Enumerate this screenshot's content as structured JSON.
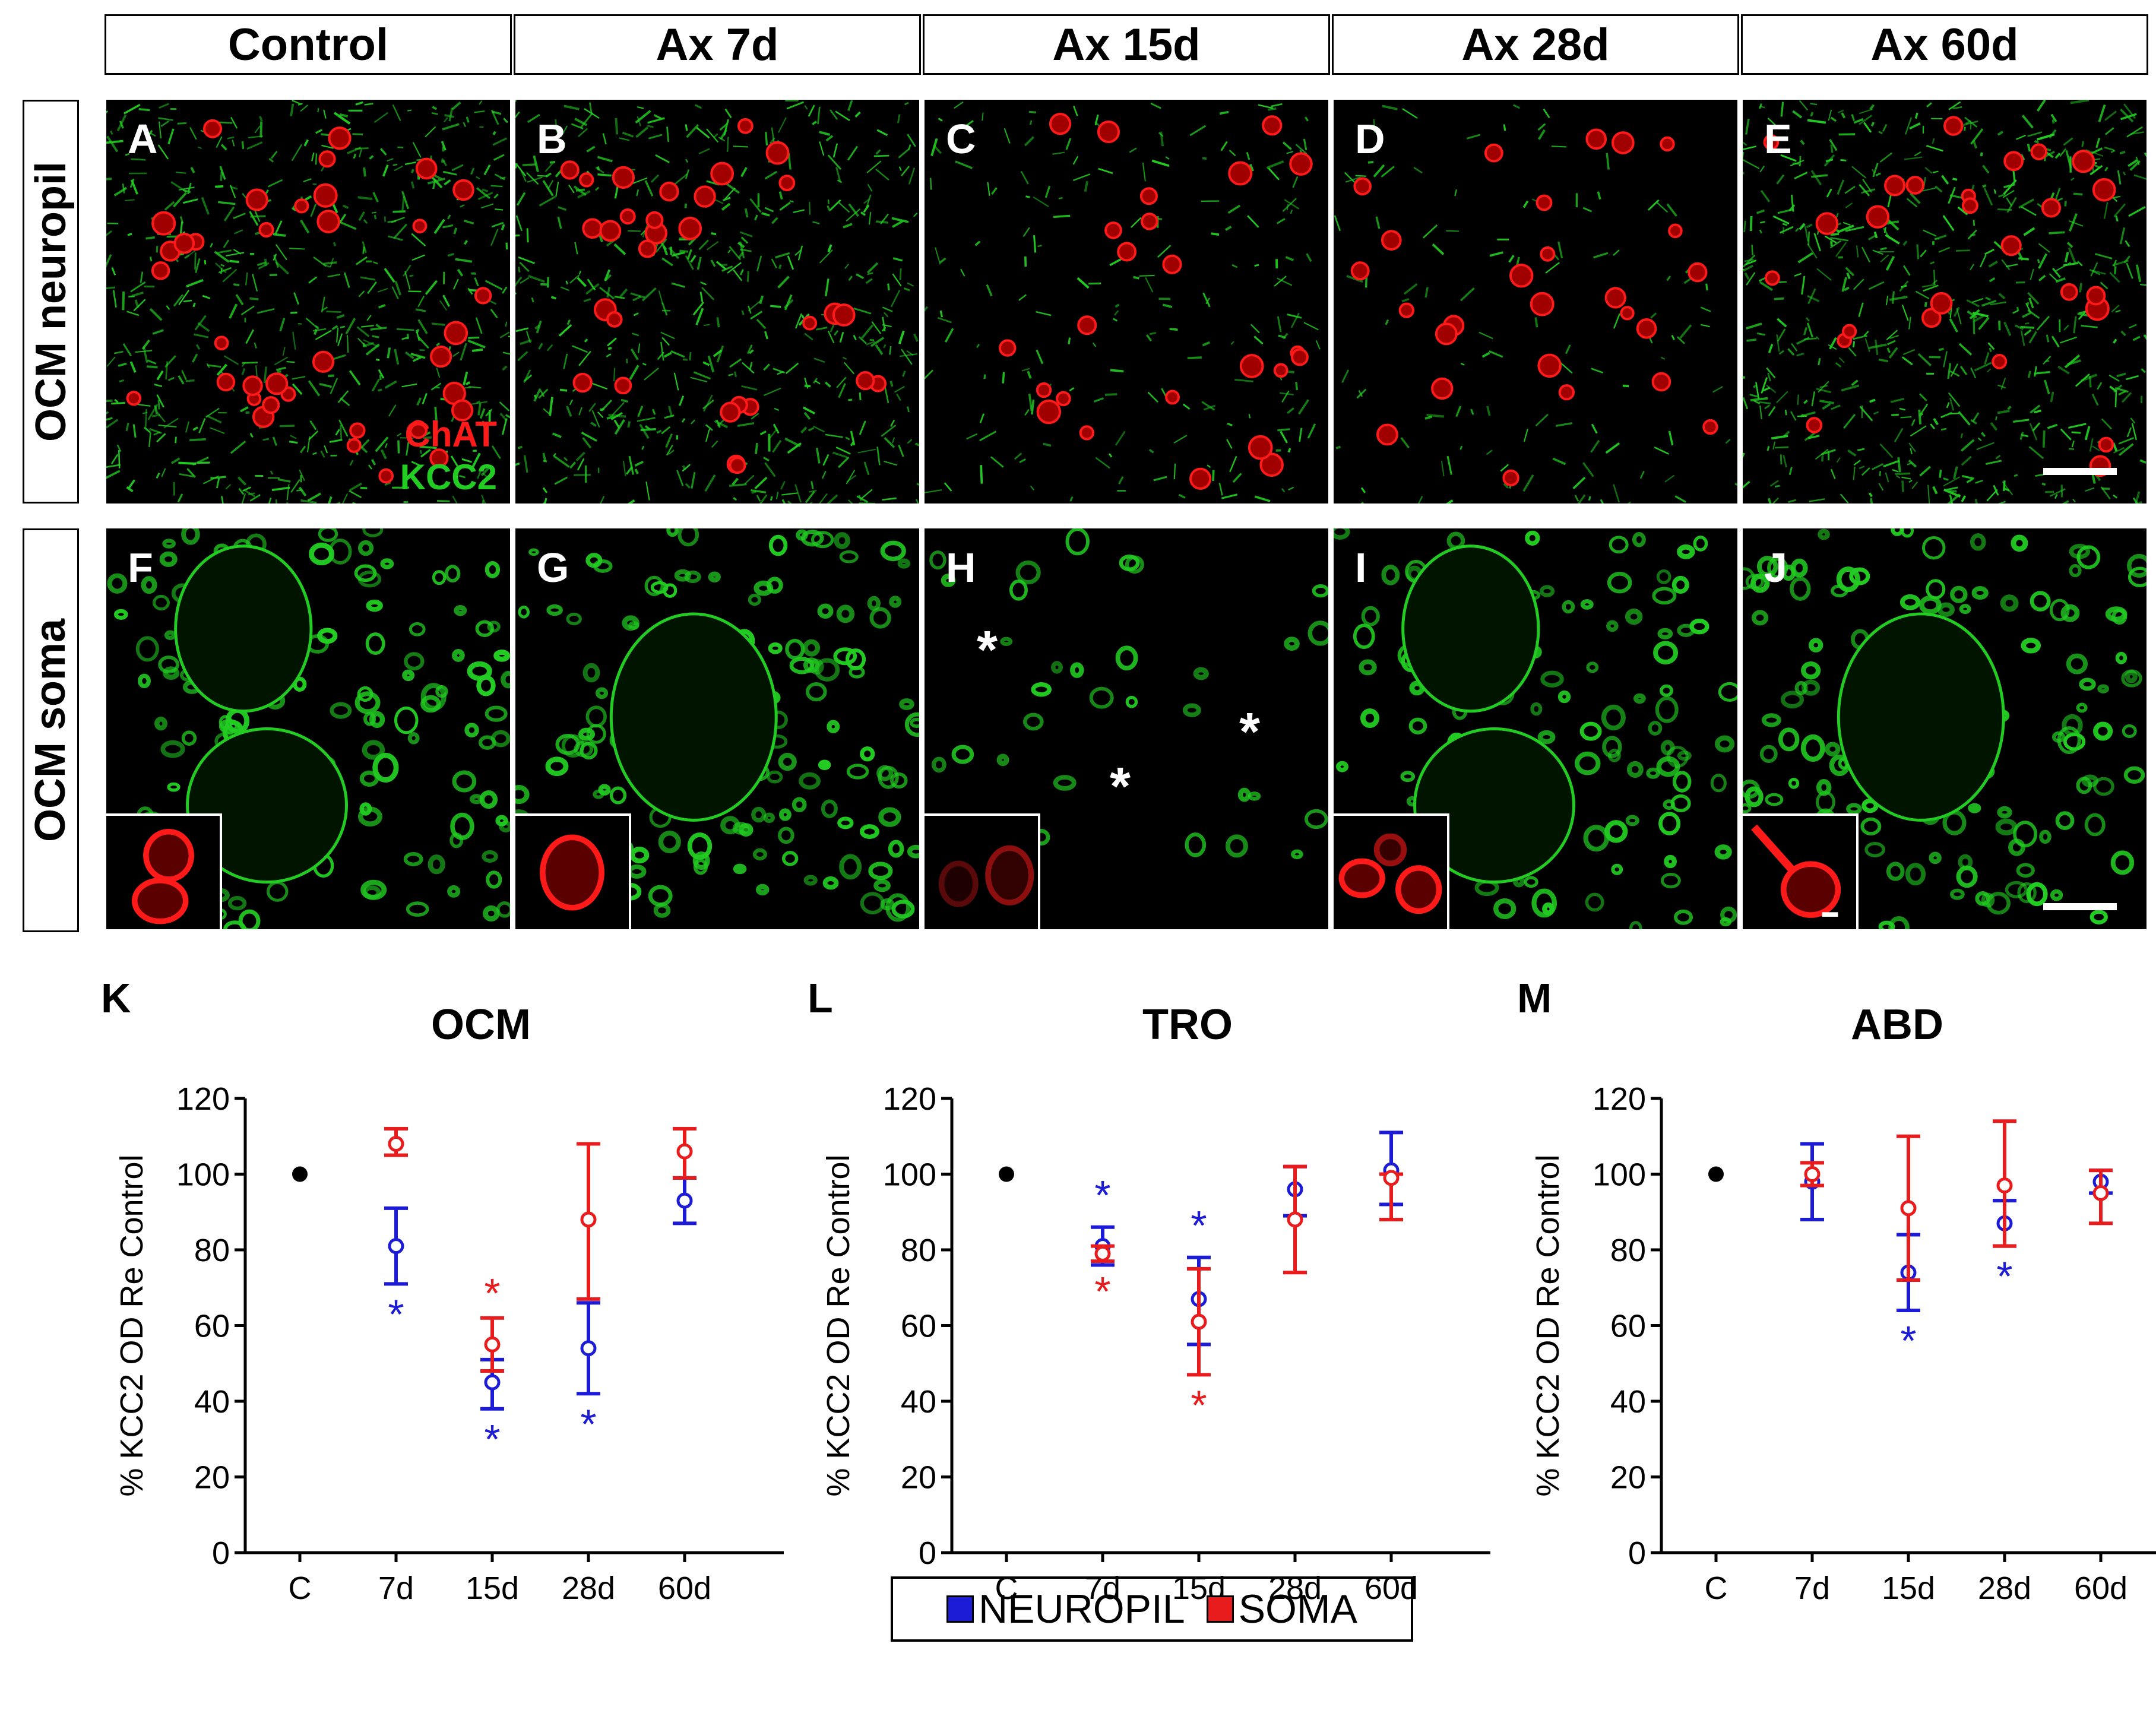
{
  "columns": [
    "Control",
    "Ax 7d",
    "Ax 15d",
    "Ax 28d",
    "Ax 60d"
  ],
  "rows": [
    "OCM neuropil",
    "OCM soma"
  ],
  "row1_panel_labels": [
    "A",
    "B",
    "C",
    "D",
    "E"
  ],
  "row2_panel_labels": [
    "F",
    "G",
    "H",
    "I",
    "J"
  ],
  "stain_labels": {
    "chat": "ChAT",
    "kcc2": "KCC2"
  },
  "stain_colors": {
    "chat": "#ff1a1a",
    "kcc2": "#22cc22"
  },
  "asterisk": "*",
  "legend": {
    "neuropil": "NEUROPIL",
    "soma": "SOMA",
    "neuropil_color": "#1c1cd6",
    "soma_color": "#e81c1c"
  },
  "chart_data": [
    {
      "type": "scatter",
      "panel_label": "K",
      "title": "OCM",
      "ylabel": "% KCC2 OD Re Control",
      "categories": [
        "C",
        "7d",
        "15d",
        "28d",
        "60d"
      ],
      "yticks": [
        "0",
        "20",
        "40",
        "60",
        "80",
        "100",
        "120"
      ],
      "ylim": [
        0,
        120
      ],
      "control_value": 100,
      "series": [
        {
          "name": "NEUROPIL",
          "values": [
            null,
            81,
            45,
            54,
            93
          ],
          "err_low": [
            null,
            71,
            38,
            42,
            87
          ],
          "err_high": [
            null,
            91,
            51,
            66,
            99
          ],
          "significant": [
            false,
            true,
            true,
            true,
            false
          ]
        },
        {
          "name": "SOMA",
          "values": [
            null,
            108,
            55,
            88,
            106
          ],
          "err_low": [
            null,
            105,
            48,
            67,
            99
          ],
          "err_high": [
            null,
            112,
            62,
            108,
            112
          ],
          "significant": [
            false,
            false,
            true,
            false,
            false
          ]
        }
      ]
    },
    {
      "type": "scatter",
      "panel_label": "L",
      "title": "TRO",
      "ylabel": "% KCC2 OD Re Control",
      "categories": [
        "C",
        "7d",
        "15d",
        "28d",
        "60d"
      ],
      "yticks": [
        "0",
        "20",
        "40",
        "60",
        "80",
        "100",
        "120"
      ],
      "ylim": [
        0,
        120
      ],
      "control_value": 100,
      "series": [
        {
          "name": "NEUROPIL",
          "values": [
            null,
            81,
            67,
            96,
            101
          ],
          "err_low": [
            null,
            76,
            55,
            89,
            92
          ],
          "err_high": [
            null,
            86,
            78,
            102,
            111
          ],
          "significant": [
            false,
            true,
            true,
            false,
            false
          ]
        },
        {
          "name": "SOMA",
          "values": [
            null,
            79,
            61,
            88,
            99
          ],
          "err_low": [
            null,
            77,
            47,
            74,
            88
          ],
          "err_high": [
            null,
            81,
            75,
            102,
            100
          ],
          "significant": [
            false,
            true,
            true,
            false,
            false
          ]
        }
      ]
    },
    {
      "type": "scatter",
      "panel_label": "M",
      "title": "ABD",
      "ylabel": "% KCC2 OD Re Control",
      "categories": [
        "C",
        "7d",
        "15d",
        "28d",
        "60d"
      ],
      "yticks": [
        "0",
        "20",
        "40",
        "60",
        "80",
        "100",
        "120"
      ],
      "ylim": [
        0,
        120
      ],
      "control_value": 100,
      "series": [
        {
          "name": "NEUROPIL",
          "values": [
            null,
            98,
            74,
            87,
            98
          ],
          "err_low": [
            null,
            88,
            64,
            81,
            95
          ],
          "err_high": [
            null,
            108,
            84,
            93,
            101
          ],
          "significant": [
            false,
            false,
            true,
            true,
            false
          ]
        },
        {
          "name": "SOMA",
          "values": [
            null,
            100,
            91,
            97,
            95
          ],
          "err_low": [
            null,
            97,
            72,
            81,
            87
          ],
          "err_high": [
            null,
            103,
            110,
            114,
            101
          ],
          "significant": [
            false,
            false,
            false,
            false,
            false
          ]
        }
      ]
    }
  ]
}
